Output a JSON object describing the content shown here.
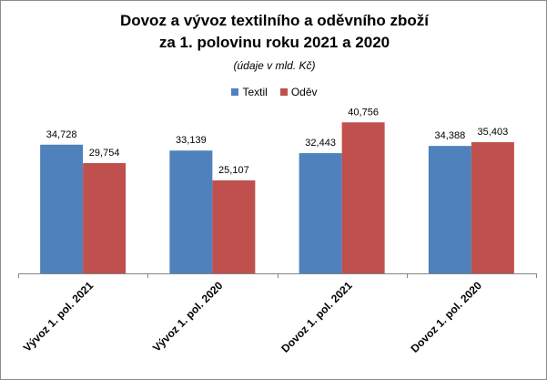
{
  "colors": {
    "textil": "#4f81bd",
    "odev": "#c0504d"
  },
  "chart_data": {
    "type": "bar",
    "title_line1": "Dovoz a vývoz textilního a oděvního zboží",
    "title_line2": "za 1. polovinu roku 2021 a 2020",
    "subtitle": "(údaje v mld. Kč)",
    "categories": [
      "Vývoz 1. pol. 2021",
      "Vývoz 1. pol. 2020",
      "Dovoz 1. pol. 2021",
      "Dovoz 1. pol. 2020"
    ],
    "series": [
      {
        "name": "Textil",
        "values": [
          34.728,
          33.139,
          32.443,
          34.388
        ],
        "labels": [
          "34,728",
          "33,139",
          "32,443",
          "34,388"
        ]
      },
      {
        "name": "Oděv",
        "values": [
          29.754,
          25.107,
          40.756,
          35.403
        ],
        "labels": [
          "29,754",
          "25,107",
          "40,756",
          "35,403"
        ]
      }
    ],
    "ylim": [
      0,
      45
    ],
    "legend_position": "top",
    "grid": false
  }
}
